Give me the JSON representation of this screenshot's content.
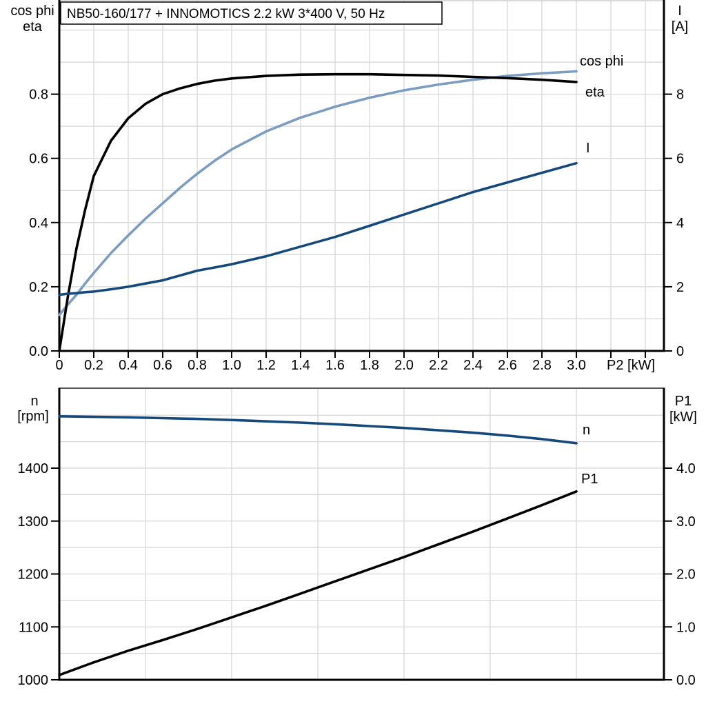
{
  "title_box": {
    "text": "NB50-160/177 + INNOMOTICS   2.2 kW   3*400 V, 50 Hz"
  },
  "colors": {
    "eta_curve": "#000000",
    "cos_phi_curve": "#7d9cc2",
    "current_curve": "#15497c",
    "speed_curve": "#15497c",
    "p1_curve": "#000000",
    "blue_label": "#1e5fae",
    "grid": "#d7d7d7",
    "axis": "#000000",
    "frame_top": "#595959"
  },
  "top_chart": {
    "left_axis_label_line1": "cos phi",
    "left_axis_label_line2": "eta",
    "right_axis_label_line1": "I",
    "right_axis_label_line2": "[A]",
    "x_axis_label": "P2 [kW]",
    "left_ticks": [
      "0.0",
      "0.2",
      "0.4",
      "0.6",
      "0.8"
    ],
    "right_ticks": [
      "0",
      "2",
      "4",
      "6",
      "8"
    ],
    "x_ticks": [
      "0",
      "0.2",
      "0.4",
      "0.6",
      "0.8",
      "1.0",
      "1.2",
      "1.4",
      "1.6",
      "1.8",
      "2.0",
      "2.2",
      "2.4",
      "2.6",
      "2.8",
      "3.0"
    ],
    "curve_labels": {
      "cos_phi": "cos phi",
      "eta": "eta",
      "current": "I"
    }
  },
  "bottom_chart": {
    "left_axis_label_line1": "n",
    "left_axis_label_line2": "[rpm]",
    "right_axis_label_line1": "P1",
    "right_axis_label_line2": "[kW]",
    "left_ticks": [
      "1400",
      "1300",
      "1200",
      "1100",
      "1000"
    ],
    "right_ticks": [
      "4.0",
      "3.0",
      "2.0",
      "1.0",
      "0.0"
    ],
    "curve_labels": {
      "speed": "n",
      "p1": "P1"
    }
  },
  "chart_data": [
    {
      "type": "line",
      "title": "NB50-160/177 + INNOMOTICS  2.2 kW  3*400 V, 50 Hz",
      "xlabel": "P2 [kW]",
      "xlim": [
        0,
        3.5
      ],
      "left_axis": {
        "label": "cos phi / eta",
        "range": [
          0,
          1.0
        ],
        "tick_step": 0.2
      },
      "right_axis": {
        "label": "I [A]",
        "range": [
          0,
          10
        ],
        "tick_step": 2
      },
      "grid": true,
      "x": [
        0,
        0.05,
        0.1,
        0.15,
        0.2,
        0.3,
        0.4,
        0.5,
        0.6,
        0.7,
        0.8,
        0.9,
        1.0,
        1.2,
        1.4,
        1.6,
        1.8,
        2.0,
        2.2,
        2.4,
        2.6,
        2.8,
        3.0
      ],
      "series": [
        {
          "name": "eta",
          "axis": "left",
          "values": [
            0,
            0.17,
            0.32,
            0.44,
            0.545,
            0.655,
            0.725,
            0.77,
            0.8,
            0.818,
            0.832,
            0.842,
            0.849,
            0.857,
            0.861,
            0.862,
            0.862,
            0.86,
            0.858,
            0.854,
            0.85,
            0.845,
            0.838
          ]
        },
        {
          "name": "cos phi",
          "axis": "left",
          "values": [
            0.112,
            0.145,
            0.175,
            0.21,
            0.243,
            0.305,
            0.36,
            0.412,
            0.46,
            0.508,
            0.552,
            0.592,
            0.628,
            0.684,
            0.727,
            0.761,
            0.789,
            0.812,
            0.83,
            0.845,
            0.857,
            0.865,
            0.871
          ]
        },
        {
          "name": "I",
          "axis": "right",
          "unit": "A",
          "values": [
            1.75,
            1.78,
            1.8,
            1.83,
            1.85,
            1.92,
            2.0,
            2.1,
            2.2,
            2.35,
            2.5,
            2.6,
            2.7,
            2.95,
            3.25,
            3.55,
            3.9,
            4.25,
            4.6,
            4.95,
            5.25,
            5.55,
            5.85
          ]
        }
      ]
    },
    {
      "type": "line",
      "xlabel": "P2 [kW]",
      "xlim": [
        0,
        3.5
      ],
      "left_axis": {
        "label": "n [rpm]",
        "range": [
          1000,
          1550
        ],
        "tick_step": 100
      },
      "right_axis": {
        "label": "P1 [kW]",
        "range": [
          0,
          5.5
        ],
        "tick_step": 1.0
      },
      "grid": true,
      "x": [
        0,
        0.2,
        0.4,
        0.6,
        0.8,
        1.0,
        1.2,
        1.4,
        1.6,
        1.8,
        2.0,
        2.2,
        2.4,
        2.6,
        2.8,
        3.0
      ],
      "series": [
        {
          "name": "n",
          "axis": "left",
          "unit": "rpm",
          "values": [
            1498,
            1497,
            1496,
            1494.5,
            1493,
            1491,
            1488.5,
            1486,
            1483,
            1479.5,
            1476,
            1471.5,
            1467,
            1461.5,
            1455,
            1447
          ]
        },
        {
          "name": "P1",
          "axis": "right",
          "unit": "kW",
          "values": [
            0.09,
            0.33,
            0.55,
            0.75,
            0.96,
            1.18,
            1.4,
            1.63,
            1.86,
            2.09,
            2.32,
            2.56,
            2.8,
            3.05,
            3.3,
            3.56
          ]
        }
      ]
    }
  ]
}
